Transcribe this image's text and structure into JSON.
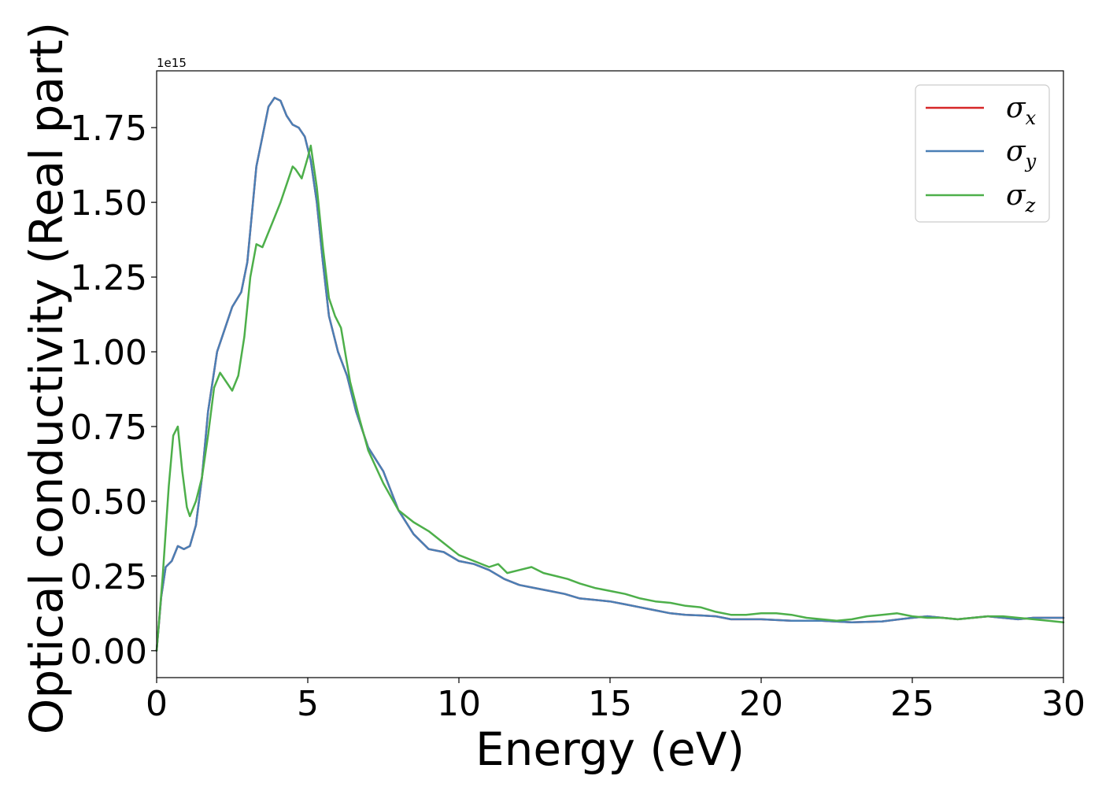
{
  "chart_data": {
    "type": "line",
    "xlabel": "Energy (eV)",
    "ylabel": "Optical conductivity (Real part)",
    "y_offset_label": "1e15",
    "xlim": [
      0,
      30
    ],
    "ylim": [
      -0.09,
      1.94
    ],
    "xticks": [
      0,
      5,
      10,
      15,
      20,
      25,
      30
    ],
    "yticks": [
      0.0,
      0.25,
      0.5,
      0.75,
      1.0,
      1.25,
      1.5,
      1.75
    ],
    "xtick_labels": [
      "0",
      "5",
      "10",
      "15",
      "20",
      "25",
      "30"
    ],
    "ytick_labels": [
      "0.00",
      "0.25",
      "0.50",
      "0.75",
      "1.00",
      "1.25",
      "1.50",
      "1.75"
    ],
    "grid": false,
    "legend": {
      "position": "top-right",
      "entries": [
        {
          "symbol": "σ",
          "sub": "x",
          "color": "#d62728"
        },
        {
          "symbol": "σ",
          "sub": "y",
          "color": "#4a7fb5"
        },
        {
          "symbol": "σ",
          "sub": "z",
          "color": "#4daf4a"
        }
      ]
    },
    "series": [
      {
        "legend_index": 0,
        "color": "#d62728",
        "x": [
          0,
          0.15,
          0.3,
          0.5,
          0.7,
          0.9,
          1.1,
          1.3,
          1.5,
          1.7,
          2.0,
          2.2,
          2.5,
          2.8,
          3.0,
          3.3,
          3.5,
          3.7,
          3.9,
          4.1,
          4.3,
          4.5,
          4.7,
          4.9,
          5.1,
          5.3,
          5.5,
          5.7,
          6.0,
          6.3,
          6.6,
          7.0,
          7.5,
          8.0,
          8.5,
          9.0,
          9.5,
          10.0,
          10.5,
          11.0,
          11.5,
          12.0,
          12.5,
          13.0,
          13.5,
          14.0,
          14.5,
          15.0,
          15.5,
          16.0,
          16.5,
          17.0,
          17.5,
          18.0,
          18.5,
          19.0,
          19.5,
          20.0,
          21.0,
          22.0,
          23.0,
          24.0,
          25.0,
          25.5,
          26.0,
          26.5,
          27.0,
          27.5,
          28.0,
          28.5,
          29.0,
          29.5,
          30.0
        ],
        "y": [
          0.0,
          0.18,
          0.28,
          0.3,
          0.35,
          0.34,
          0.35,
          0.42,
          0.58,
          0.8,
          1.0,
          1.06,
          1.15,
          1.2,
          1.3,
          1.62,
          1.72,
          1.82,
          1.85,
          1.84,
          1.79,
          1.76,
          1.75,
          1.72,
          1.64,
          1.5,
          1.3,
          1.12,
          1.0,
          0.92,
          0.8,
          0.68,
          0.6,
          0.47,
          0.39,
          0.34,
          0.33,
          0.3,
          0.29,
          0.27,
          0.24,
          0.22,
          0.21,
          0.2,
          0.19,
          0.175,
          0.17,
          0.165,
          0.155,
          0.145,
          0.135,
          0.125,
          0.12,
          0.118,
          0.115,
          0.105,
          0.105,
          0.105,
          0.1,
          0.1,
          0.095,
          0.098,
          0.11,
          0.115,
          0.11,
          0.105,
          0.11,
          0.115,
          0.11,
          0.105,
          0.11,
          0.11,
          0.11
        ]
      },
      {
        "legend_index": 1,
        "color": "#4a7fb5",
        "x": [
          0,
          0.15,
          0.3,
          0.5,
          0.7,
          0.9,
          1.1,
          1.3,
          1.5,
          1.7,
          2.0,
          2.2,
          2.5,
          2.8,
          3.0,
          3.3,
          3.5,
          3.7,
          3.9,
          4.1,
          4.3,
          4.5,
          4.7,
          4.9,
          5.1,
          5.3,
          5.5,
          5.7,
          6.0,
          6.3,
          6.6,
          7.0,
          7.5,
          8.0,
          8.5,
          9.0,
          9.5,
          10.0,
          10.5,
          11.0,
          11.5,
          12.0,
          12.5,
          13.0,
          13.5,
          14.0,
          14.5,
          15.0,
          15.5,
          16.0,
          16.5,
          17.0,
          17.5,
          18.0,
          18.5,
          19.0,
          19.5,
          20.0,
          21.0,
          22.0,
          23.0,
          24.0,
          25.0,
          25.5,
          26.0,
          26.5,
          27.0,
          27.5,
          28.0,
          28.5,
          29.0,
          29.5,
          30.0
        ],
        "y": [
          0.0,
          0.18,
          0.28,
          0.3,
          0.35,
          0.34,
          0.35,
          0.42,
          0.58,
          0.8,
          1.0,
          1.06,
          1.15,
          1.2,
          1.3,
          1.62,
          1.72,
          1.82,
          1.85,
          1.84,
          1.79,
          1.76,
          1.75,
          1.72,
          1.64,
          1.5,
          1.3,
          1.12,
          1.0,
          0.92,
          0.8,
          0.68,
          0.6,
          0.47,
          0.39,
          0.34,
          0.33,
          0.3,
          0.29,
          0.27,
          0.24,
          0.22,
          0.21,
          0.2,
          0.19,
          0.175,
          0.17,
          0.165,
          0.155,
          0.145,
          0.135,
          0.125,
          0.12,
          0.118,
          0.115,
          0.105,
          0.105,
          0.105,
          0.1,
          0.1,
          0.095,
          0.098,
          0.11,
          0.115,
          0.11,
          0.105,
          0.11,
          0.115,
          0.11,
          0.105,
          0.11,
          0.11,
          0.11
        ]
      },
      {
        "legend_index": 2,
        "color": "#4daf4a",
        "x": [
          0,
          0.2,
          0.4,
          0.55,
          0.7,
          0.85,
          1.0,
          1.1,
          1.3,
          1.5,
          1.7,
          1.9,
          2.1,
          2.3,
          2.5,
          2.7,
          2.9,
          3.1,
          3.3,
          3.5,
          3.7,
          3.9,
          4.1,
          4.3,
          4.5,
          4.6,
          4.8,
          5.0,
          5.1,
          5.3,
          5.5,
          5.7,
          5.9,
          6.1,
          6.4,
          6.7,
          7.0,
          7.5,
          8.0,
          8.5,
          9.0,
          9.5,
          10.0,
          10.5,
          11.0,
          11.3,
          11.6,
          12.0,
          12.4,
          12.8,
          13.2,
          13.6,
          14.0,
          14.5,
          15.0,
          15.5,
          16.0,
          16.5,
          17.0,
          17.5,
          18.0,
          18.5,
          19.0,
          19.5,
          20.0,
          20.5,
          21.0,
          21.5,
          22.0,
          22.5,
          23.0,
          23.5,
          24.0,
          24.5,
          25.0,
          25.5,
          26.0,
          26.5,
          27.0,
          27.5,
          28.0,
          28.5,
          29.0,
          29.5,
          30.0
        ],
        "y": [
          0.0,
          0.25,
          0.55,
          0.72,
          0.75,
          0.6,
          0.48,
          0.45,
          0.5,
          0.58,
          0.72,
          0.88,
          0.93,
          0.9,
          0.87,
          0.92,
          1.05,
          1.25,
          1.36,
          1.35,
          1.4,
          1.45,
          1.5,
          1.56,
          1.62,
          1.61,
          1.58,
          1.65,
          1.69,
          1.55,
          1.35,
          1.18,
          1.12,
          1.08,
          0.9,
          0.78,
          0.67,
          0.56,
          0.47,
          0.43,
          0.4,
          0.36,
          0.32,
          0.3,
          0.28,
          0.29,
          0.26,
          0.27,
          0.28,
          0.26,
          0.25,
          0.24,
          0.225,
          0.21,
          0.2,
          0.19,
          0.175,
          0.165,
          0.16,
          0.15,
          0.145,
          0.13,
          0.12,
          0.12,
          0.125,
          0.125,
          0.12,
          0.11,
          0.105,
          0.1,
          0.105,
          0.115,
          0.12,
          0.125,
          0.115,
          0.11,
          0.11,
          0.105,
          0.11,
          0.115,
          0.115,
          0.11,
          0.105,
          0.1,
          0.095
        ]
      }
    ]
  }
}
